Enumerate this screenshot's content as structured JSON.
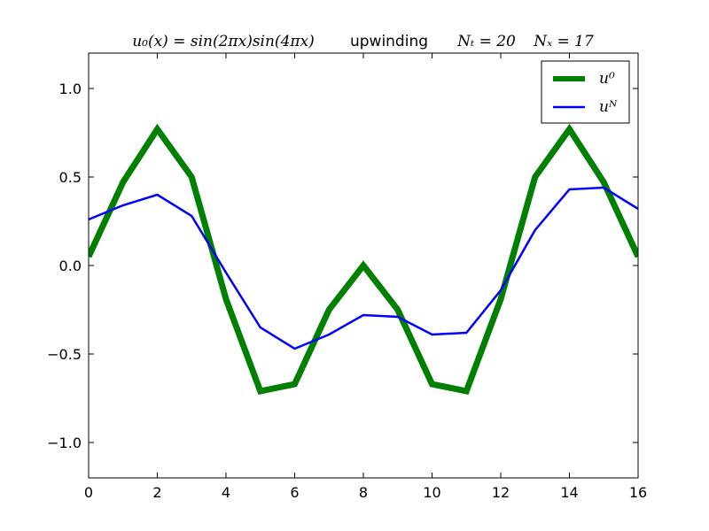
{
  "chart_data": {
    "type": "line",
    "title": {
      "formula": "u₀(x) = sin(2πx)sin(4πx)",
      "method": "upwinding",
      "nt": "Nₜ = 20",
      "nx": "Nₓ = 17"
    },
    "xlabel": "",
    "ylabel": "",
    "xlim": [
      0,
      16
    ],
    "ylim": [
      -1.2,
      1.2
    ],
    "xticks": [
      0,
      2,
      4,
      6,
      8,
      10,
      12,
      14,
      16
    ],
    "xtick_labels": [
      "0",
      "2",
      "4",
      "6",
      "8",
      "10",
      "12",
      "14",
      "16"
    ],
    "yticks": [
      1.0,
      0.5,
      0.0,
      -0.5,
      -1.0
    ],
    "ytick_labels": [
      "1.0",
      "0.5",
      "0.0",
      "−0.5",
      "−1.0"
    ],
    "grid": false,
    "legend_position": "top-right",
    "x": [
      0,
      1,
      2,
      3,
      4,
      5,
      6,
      7,
      8,
      9,
      10,
      11,
      12,
      13,
      14,
      15,
      16
    ],
    "series": [
      {
        "name": "u⁰",
        "color": "#008000",
        "values": [
          0.05,
          0.47,
          0.77,
          0.5,
          -0.19,
          -0.71,
          -0.67,
          -0.25,
          0.0,
          -0.25,
          -0.67,
          -0.71,
          -0.19,
          0.5,
          0.77,
          0.47,
          0.05
        ]
      },
      {
        "name": "uᴺ",
        "color": "#0000ff",
        "values": [
          0.26,
          0.34,
          0.4,
          0.28,
          -0.04,
          -0.35,
          -0.47,
          -0.39,
          -0.28,
          -0.29,
          -0.39,
          -0.38,
          -0.14,
          0.2,
          0.43,
          0.44,
          0.32
        ]
      }
    ]
  }
}
